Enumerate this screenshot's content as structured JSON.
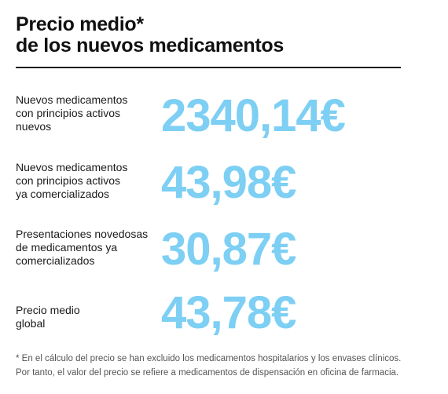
{
  "title": {
    "line1": "Precio medio*",
    "line2": "de los nuevos medicamentos"
  },
  "accent_color": "#7dcff3",
  "rows": [
    {
      "label_lines": [
        "Nuevos medicamentos",
        "con principios activos",
        "nuevos"
      ],
      "value": "2340,14€"
    },
    {
      "label_lines": [
        "Nuevos medicamentos",
        "con principios activos",
        "ya comercializados"
      ],
      "value": "43,98€"
    },
    {
      "label_lines": [
        "Presentaciones novedosas",
        "de medicamentos ya",
        "comercializados"
      ],
      "value": "30,87€"
    },
    {
      "label_lines": [
        "Precio medio",
        "global"
      ],
      "value": "43,78€"
    }
  ],
  "footnote": {
    "line1": "* En el cálculo del precio se han excluido los medicamentos hospitalarios y los envases clínicos.",
    "line2": "Por tanto, el valor del precio se refiere a medicamentos de dispensación en oficina de farmacia."
  }
}
